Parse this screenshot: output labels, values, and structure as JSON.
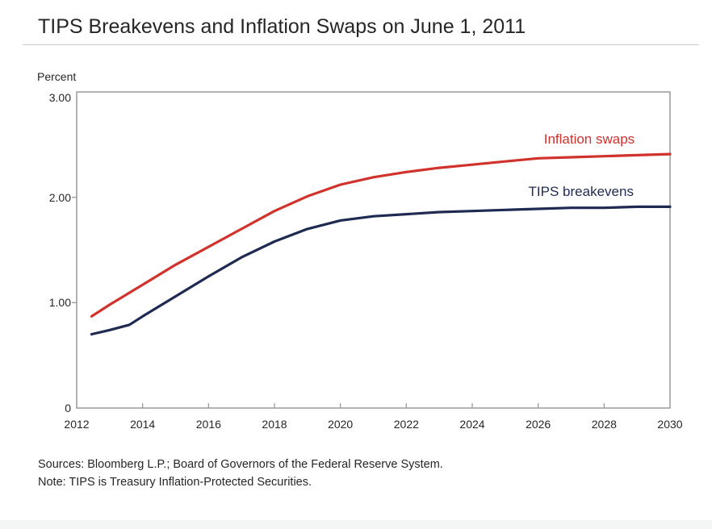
{
  "page": {
    "title": {
      "prefix": "TIPS Breakevens and Inflation Swaps on ",
      "date": "June 1, 2011"
    },
    "sources": "Sources: Bloomberg L.P.; Board of Governors of the Federal Reserve System.",
    "note": "Note: TIPS is Treasury Inflation-Protected Securities."
  },
  "colors": {
    "inflation_swaps": "#d1322c",
    "tips_breakevens": "#1f2a52",
    "axis": "#9a9a9a",
    "text": "#262626"
  },
  "chart_data": {
    "type": "line",
    "title": "TIPS Breakevens and Inflation Swaps on June 1, 2011",
    "ylabel": "Percent",
    "xlabel": "",
    "xlim": [
      2012,
      2030
    ],
    "ylim": [
      0,
      3
    ],
    "grid": false,
    "legend_position": "inline-labels-near-lines",
    "x_ticks": [
      {
        "value": 2012,
        "label": "2012"
      },
      {
        "value": 2014,
        "label": "2014"
      },
      {
        "value": 2016,
        "label": "2016"
      },
      {
        "value": 2018,
        "label": "2018"
      },
      {
        "value": 2020,
        "label": "2020"
      },
      {
        "value": 2022,
        "label": "2022"
      },
      {
        "value": 2024,
        "label": "2024"
      },
      {
        "value": 2026,
        "label": "2026"
      },
      {
        "value": 2028,
        "label": "2028"
      },
      {
        "value": 2030,
        "label": "2030"
      }
    ],
    "y_ticks": [
      {
        "value": 0,
        "label": "0"
      },
      {
        "value": 1,
        "label": "1.00"
      },
      {
        "value": 2,
        "label": "2.00"
      },
      {
        "value": 3,
        "label": "3.00"
      }
    ],
    "series": [
      {
        "name": "Inflation swaps",
        "color": "#d1322c",
        "x": [
          2012.45,
          2013,
          2014,
          2015,
          2016,
          2017,
          2018,
          2019,
          2020,
          2021,
          2022,
          2023,
          2024,
          2025,
          2026,
          2027,
          2028,
          2029,
          2030
        ],
        "values": [
          0.87,
          0.98,
          1.17,
          1.36,
          1.53,
          1.7,
          1.87,
          2.01,
          2.12,
          2.19,
          2.24,
          2.28,
          2.31,
          2.34,
          2.37,
          2.38,
          2.39,
          2.4,
          2.41
        ],
        "label_pos": {
          "year": 2027.55,
          "value": 2.55
        }
      },
      {
        "name": "TIPS breakevens",
        "color": "#1f2a52",
        "x": [
          2012.45,
          2013,
          2013.6,
          2014,
          2015,
          2016,
          2017,
          2018,
          2019,
          2020,
          2021,
          2022,
          2023,
          2024,
          2025,
          2026,
          2027,
          2028,
          2029,
          2030
        ],
        "values": [
          0.7,
          0.74,
          0.79,
          0.87,
          1.06,
          1.25,
          1.43,
          1.58,
          1.7,
          1.78,
          1.82,
          1.84,
          1.86,
          1.87,
          1.88,
          1.89,
          1.9,
          1.9,
          1.91,
          1.91
        ],
        "label_pos": {
          "year": 2027.3,
          "value": 2.05
        }
      }
    ]
  }
}
